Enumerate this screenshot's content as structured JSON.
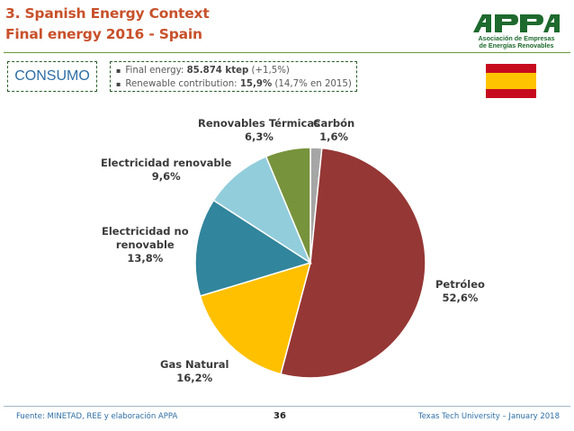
{
  "slide": {
    "title_line1": "3. Spanish Energy Context",
    "title_line2": "Final energy 2016 - Spain",
    "consumo_label": "CONSUMO",
    "bullets": [
      {
        "prefix": "Final energy: ",
        "bold": "85.874 ktep",
        "suffix": " (+1,5%)"
      },
      {
        "prefix": "Renewable contribution: ",
        "bold": "15,9%",
        "suffix": " (14,7% en 2015)"
      }
    ],
    "logo": {
      "wordmark": "APPA",
      "line1": "Asociación de Empresas",
      "line2": "de Energías Renovables"
    },
    "flag": {
      "colors": [
        "#c60b1e",
        "#ffc400",
        "#c60b1e"
      ]
    }
  },
  "chart_data": {
    "type": "pie",
    "title": "",
    "slices": [
      {
        "name": "Carbón",
        "value": 1.6,
        "label": "1,6%",
        "color": "#a6a6a6"
      },
      {
        "name": "Petróleo",
        "value": 52.6,
        "label": "52,6%",
        "color": "#953735"
      },
      {
        "name": "Gas Natural",
        "value": 16.2,
        "label": "16,2%",
        "color": "#ffc000"
      },
      {
        "name": "Electricidad no renovable",
        "value": 13.8,
        "label": "13,8%",
        "color": "#31859c"
      },
      {
        "name": "Electricidad renovable",
        "value": 9.6,
        "label": "9,6%",
        "color": "#92cddc"
      },
      {
        "name": "Renovables Térmicas",
        "value": 6.3,
        "label": "6,3%",
        "color": "#77933c"
      }
    ],
    "start": "top, clockwise"
  },
  "labels": {
    "carbon": {
      "line1": "Carbón",
      "line2": "1,6%"
    },
    "petroleo": {
      "line1": "Petróleo",
      "line2": "52,6%"
    },
    "gas": {
      "line1": "Gas Natural",
      "line2": "16,2%"
    },
    "elec_no": {
      "line1": "Electricidad no",
      "line2": "renovable",
      "line3": "13,8%"
    },
    "elec_ren": {
      "line1": "Electricidad renovable",
      "line2": "9,6%"
    },
    "ren_term": {
      "line1": "Renovables Térmicas",
      "line2": "6,3%"
    }
  },
  "footer": {
    "source": "Fuente: MINETAD, REE y elaboración APPA",
    "page": "36",
    "right": "Texas Tech University – January 2018"
  }
}
